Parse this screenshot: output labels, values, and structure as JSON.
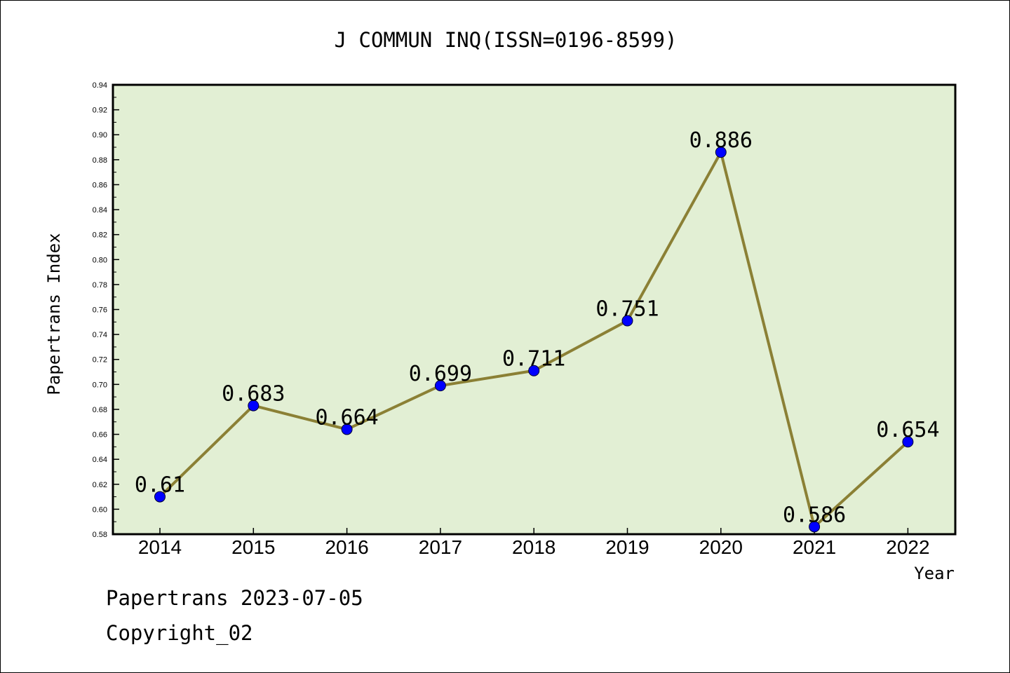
{
  "chart_data": {
    "type": "line",
    "title": "J COMMUN INQ(ISSN=0196-8599)",
    "xlabel": "Year",
    "ylabel": "Papertrans Index",
    "categories": [
      "2014",
      "2015",
      "2016",
      "2017",
      "2018",
      "2019",
      "2020",
      "2021",
      "2022"
    ],
    "series": [
      {
        "values": [
          0.61,
          0.683,
          0.664,
          0.699,
          0.711,
          0.751,
          0.886,
          0.586,
          0.654
        ],
        "labels": [
          "0.61",
          "0.683",
          "0.664",
          "0.699",
          "0.711",
          "0.751",
          "0.886",
          "0.586",
          "0.654"
        ]
      }
    ],
    "ylim": [
      0.58,
      0.94
    ],
    "yticks": [
      "0.58",
      "0.60",
      "0.62",
      "0.64",
      "0.66",
      "0.68",
      "0.70",
      "0.72",
      "0.74",
      "0.76",
      "0.78",
      "0.80",
      "0.82",
      "0.84",
      "0.86",
      "0.88",
      "0.90",
      "0.92",
      "0.94"
    ],
    "grid": false,
    "legend": "none",
    "colors": {
      "plot_background": "#e2efd4",
      "line": "#8b8035",
      "marker": "#0000ff"
    }
  },
  "footer": {
    "line1": "Papertrans 2023-07-05",
    "line2": "Copyright_02"
  }
}
